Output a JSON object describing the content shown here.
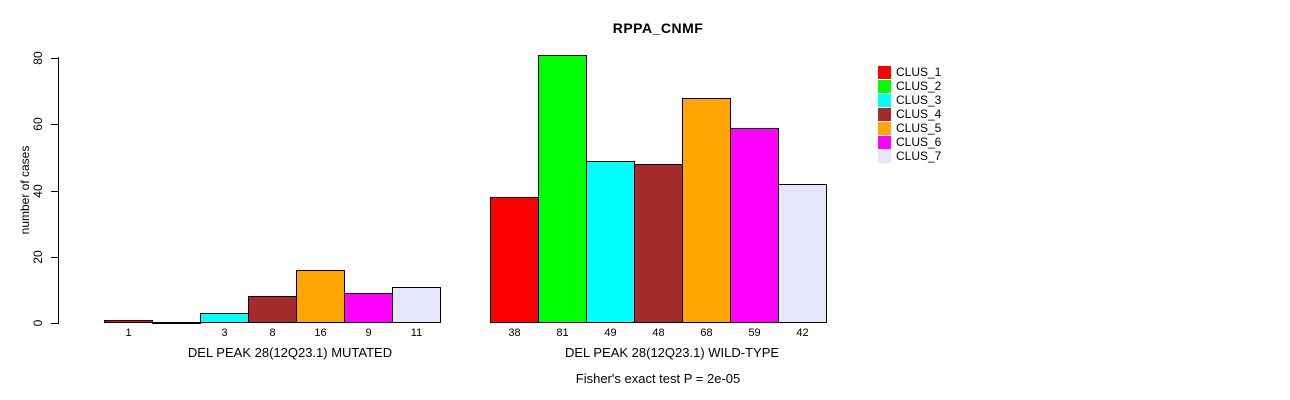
{
  "page": {
    "background": "#ffffff"
  },
  "chart_data": {
    "type": "bar",
    "title": "RPPA_CNMF",
    "ylabel": "number of cases",
    "xlabel": "",
    "ylim": [
      0,
      80
    ],
    "yticks": [
      0,
      20,
      40,
      60,
      80
    ],
    "grid": false,
    "legend_position": "right",
    "legend": [
      {
        "name": "CLUS_1",
        "color": "#FF0000"
      },
      {
        "name": "CLUS_2",
        "color": "#00FF00"
      },
      {
        "name": "CLUS_3",
        "color": "#00FFFF"
      },
      {
        "name": "CLUS_4",
        "color": "#A52A2A"
      },
      {
        "name": "CLUS_5",
        "color": "#FFA500"
      },
      {
        "name": "CLUS_6",
        "color": "#FF00FF"
      },
      {
        "name": "CLUS_7",
        "color": "#E6E6FA"
      }
    ],
    "groups": [
      {
        "label": "DEL PEAK 28(12Q23.1) MUTATED",
        "values": [
          1,
          0,
          3,
          8,
          16,
          9,
          11
        ],
        "bar_labels": [
          "1",
          "",
          "3",
          "8",
          "16",
          "9",
          "11"
        ]
      },
      {
        "label": "DEL PEAK 28(12Q23.1) WILD-TYPE",
        "values": [
          38,
          81,
          49,
          48,
          68,
          59,
          42
        ],
        "bar_labels": [
          "38",
          "81",
          "49",
          "48",
          "68",
          "59",
          "42"
        ]
      }
    ],
    "footnote": "Fisher's exact test P = 2e-05"
  }
}
